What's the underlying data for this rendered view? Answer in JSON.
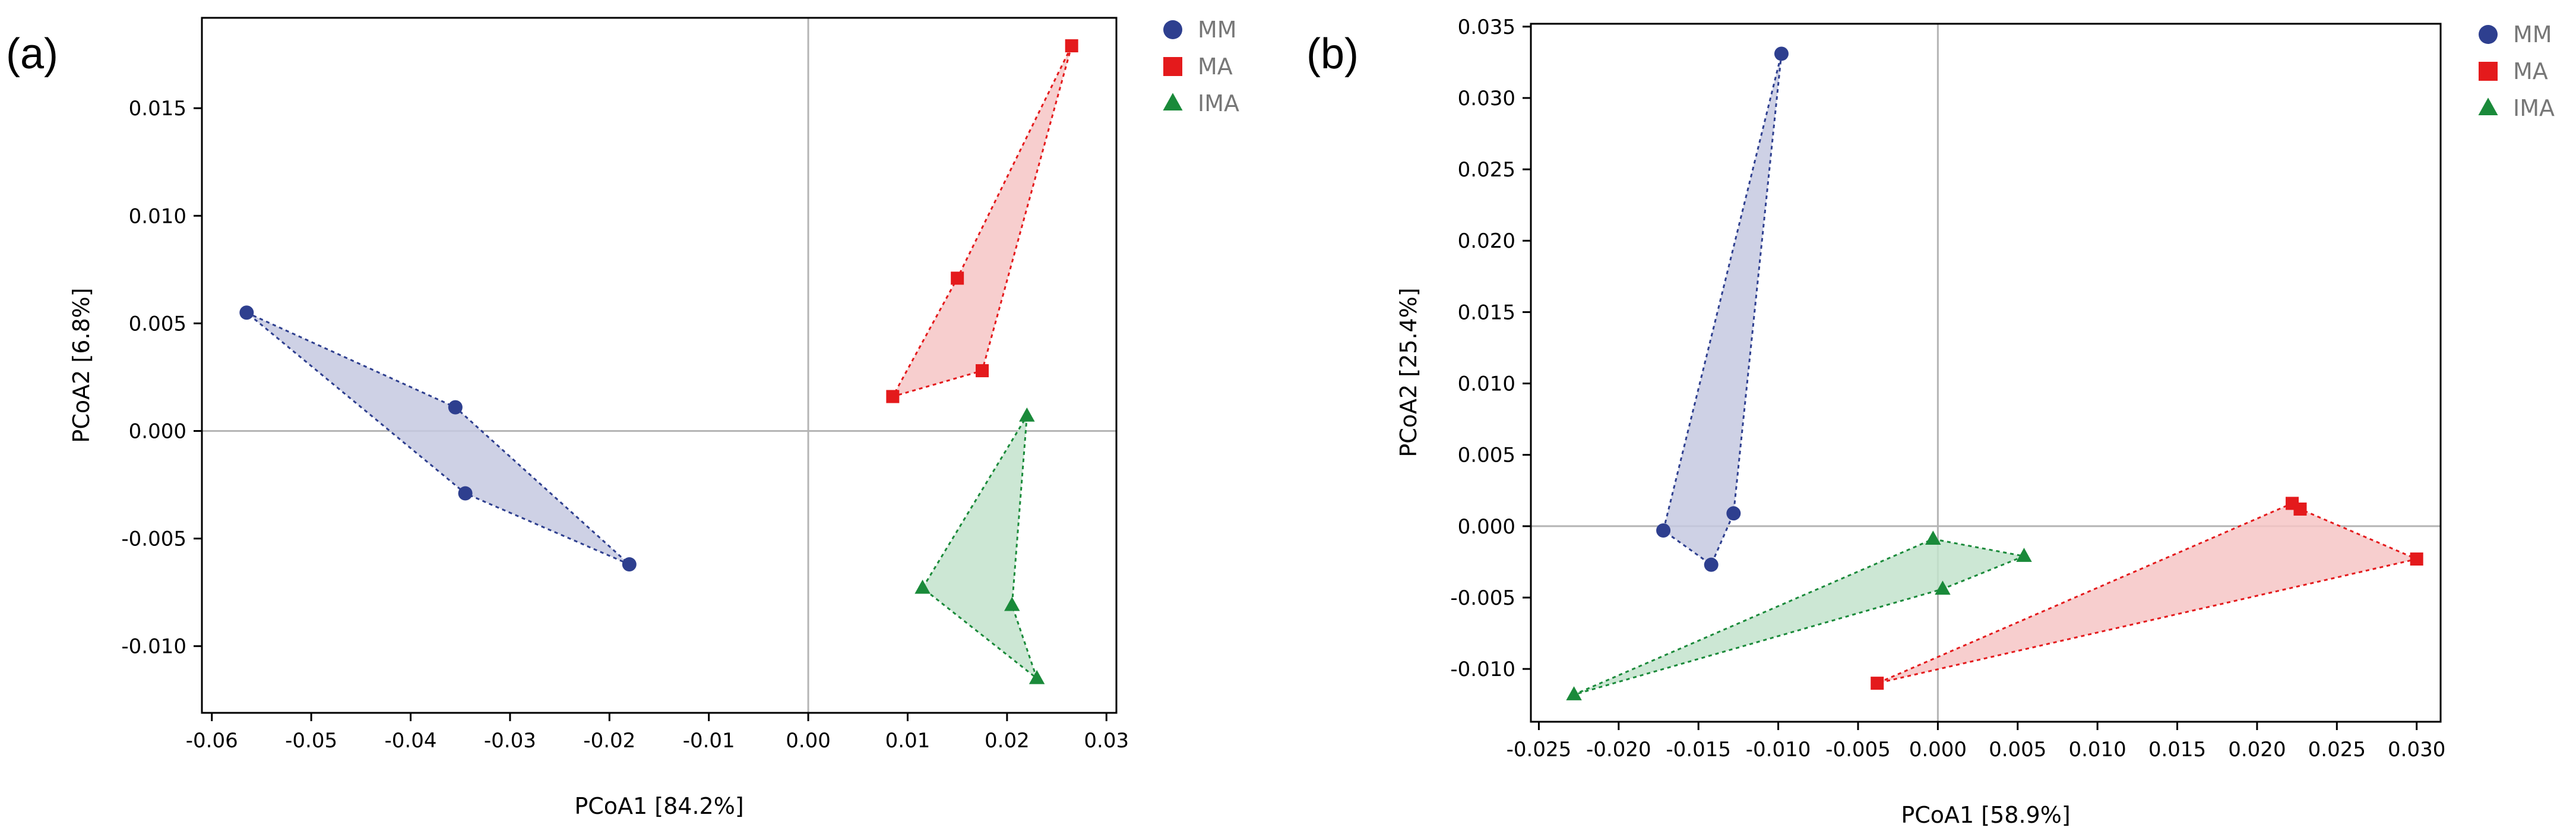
{
  "chart_data": [
    {
      "type": "scatter",
      "panel_label": "(a)",
      "title": "",
      "xlabel": "PCoA1 [84.2%]",
      "ylabel": "PCoA2 [6.8%]",
      "xlim": [
        -0.061,
        0.031
      ],
      "ylim": [
        -0.0131,
        0.0192
      ],
      "xticks": [
        -0.06,
        -0.05,
        -0.04,
        -0.03,
        -0.02,
        -0.01,
        0.0,
        0.01,
        0.02,
        0.03
      ],
      "xtick_labels": [
        "-0.06",
        "-0.05",
        "-0.04",
        "-0.03",
        "-0.02",
        "-0.01",
        "0.00",
        "0.01",
        "0.02",
        "0.03"
      ],
      "yticks": [
        -0.01,
        -0.005,
        0.0,
        0.005,
        0.01,
        0.015
      ],
      "ytick_labels": [
        "-0.010",
        "-0.005",
        "0.000",
        "0.005",
        "0.010",
        "0.015"
      ],
      "grid": false,
      "zero_lines": true,
      "legend_position": "outside-top-right",
      "series": [
        {
          "name": "MM",
          "marker": "circle",
          "color": "#2e3f8f",
          "fill": "#c6c9e1",
          "points": [
            [
              -0.0565,
              0.0055
            ],
            [
              -0.0355,
              0.0011
            ],
            [
              -0.0345,
              -0.0029
            ],
            [
              -0.018,
              -0.0062
            ]
          ]
        },
        {
          "name": "MA",
          "marker": "square",
          "color": "#e41a1c",
          "fill": "#f6c5c5",
          "points": [
            [
              0.0265,
              0.0179
            ],
            [
              0.015,
              0.0071
            ],
            [
              0.0175,
              0.0028
            ],
            [
              0.0085,
              0.0016
            ]
          ]
        },
        {
          "name": "IMA",
          "marker": "triangle",
          "color": "#1a8a3a",
          "fill": "#c3e3cd",
          "points": [
            [
              0.022,
              0.0007
            ],
            [
              0.0115,
              -0.0073
            ],
            [
              0.0205,
              -0.0081
            ],
            [
              0.023,
              -0.0115
            ]
          ]
        }
      ]
    },
    {
      "type": "scatter",
      "panel_label": "(b)",
      "title": "",
      "xlabel": "PCoA1 [58.9%]",
      "ylabel": "PCoA2 [25.4%]",
      "xlim": [
        -0.0255,
        0.0315
      ],
      "ylim": [
        -0.0137,
        0.0352
      ],
      "xticks": [
        -0.025,
        -0.02,
        -0.015,
        -0.01,
        -0.005,
        0.0,
        0.005,
        0.01,
        0.015,
        0.02,
        0.025,
        0.03
      ],
      "xtick_labels": [
        "-0.025",
        "-0.020",
        "-0.015",
        "-0.010",
        "-0.005",
        "0.000",
        "0.005",
        "0.010",
        "0.015",
        "0.020",
        "0.025",
        "0.030"
      ],
      "yticks": [
        -0.01,
        -0.005,
        0.0,
        0.005,
        0.01,
        0.015,
        0.02,
        0.025,
        0.03,
        0.035
      ],
      "ytick_labels": [
        "-0.010",
        "-0.005",
        "0.000",
        "0.005",
        "0.010",
        "0.015",
        "0.020",
        "0.025",
        "0.030",
        "0.035"
      ],
      "grid": false,
      "zero_lines": true,
      "legend_position": "outside-top-right",
      "series": [
        {
          "name": "MM",
          "marker": "circle",
          "color": "#2e3f8f",
          "fill": "#c6c9e1",
          "points": [
            [
              -0.0098,
              0.0331
            ],
            [
              -0.0172,
              -0.0003
            ],
            [
              -0.0128,
              0.0009
            ],
            [
              -0.0142,
              -0.0027
            ]
          ]
        },
        {
          "name": "MA",
          "marker": "square",
          "color": "#e41a1c",
          "fill": "#f6c5c5",
          "points": [
            [
              0.0222,
              0.0016
            ],
            [
              0.0227,
              0.0012
            ],
            [
              0.03,
              -0.0023
            ],
            [
              -0.0038,
              -0.011
            ]
          ]
        },
        {
          "name": "IMA",
          "marker": "triangle",
          "color": "#1a8a3a",
          "fill": "#c3e3cd",
          "points": [
            [
              -0.0003,
              -0.0009
            ],
            [
              0.0054,
              -0.0021
            ],
            [
              0.0003,
              -0.0044
            ],
            [
              -0.0228,
              -0.0118
            ]
          ]
        }
      ]
    }
  ]
}
